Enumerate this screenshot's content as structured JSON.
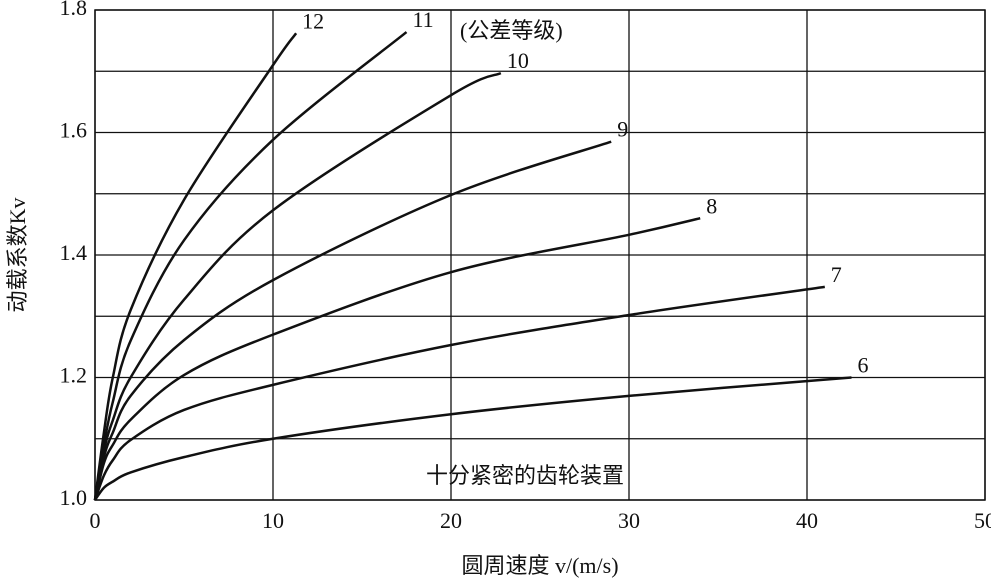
{
  "chart_data": {
    "type": "line",
    "xlabel": "圆周速度 v/(m/s)",
    "ylabel": "动载系数Kv",
    "annotations": [
      "(公差等级)",
      "十分紧密的齿轮装置"
    ],
    "xlim": [
      0,
      50
    ],
    "xticks": [
      0,
      10,
      20,
      30,
      40,
      50
    ],
    "ylim": [
      1.0,
      1.8
    ],
    "yticks": [
      {
        "value": 1.0,
        "label": "1.0"
      },
      {
        "value": 1.2,
        "label": "1.2"
      },
      {
        "value": 1.4,
        "label": "1.4"
      },
      {
        "value": 1.6,
        "label": "1.6"
      },
      {
        "value": 1.8,
        "label": "1.8"
      }
    ],
    "ygrid": [
      1.1,
      1.3,
      1.5,
      1.7
    ],
    "grid": true,
    "series": [
      {
        "name": "12",
        "color": "#111111",
        "x": [
          0,
          0.5,
          1,
          2,
          5,
          10,
          11.3
        ],
        "values": [
          1.0,
          1.11,
          1.2,
          1.31,
          1.49,
          1.71,
          1.762
        ]
      },
      {
        "name": "11",
        "color": "#111111",
        "x": [
          0,
          0.5,
          1,
          2,
          5,
          10,
          17.5
        ],
        "values": [
          1.0,
          1.09,
          1.16,
          1.26,
          1.424,
          1.588,
          1.764
        ]
      },
      {
        "name": "10",
        "color": "#111111",
        "x": [
          0,
          0.5,
          1,
          2,
          5,
          10,
          20,
          22.8
        ],
        "values": [
          1.0,
          1.08,
          1.13,
          1.2,
          1.327,
          1.473,
          1.661,
          1.697
        ]
      },
      {
        "name": "9",
        "color": "#111111",
        "x": [
          0,
          0.5,
          1,
          2,
          5,
          10,
          20,
          29
        ],
        "values": [
          1.0,
          1.07,
          1.11,
          1.17,
          1.261,
          1.359,
          1.498,
          1.585
        ]
      },
      {
        "name": "8",
        "color": "#111111",
        "x": [
          0,
          0.5,
          1,
          2,
          5,
          10,
          20,
          30,
          34
        ],
        "values": [
          1.0,
          1.06,
          1.09,
          1.131,
          1.204,
          1.27,
          1.372,
          1.433,
          1.46
        ]
      },
      {
        "name": "7",
        "color": "#111111",
        "x": [
          0,
          0.5,
          1,
          2,
          5,
          10,
          20,
          30,
          41
        ],
        "values": [
          1.0,
          1.04,
          1.065,
          1.098,
          1.147,
          1.188,
          1.253,
          1.302,
          1.348
        ]
      },
      {
        "name": "6",
        "color": "#111111",
        "x": [
          0,
          0.5,
          1,
          2,
          5,
          10,
          20,
          30,
          42.5
        ],
        "values": [
          1.0,
          1.02,
          1.03,
          1.045,
          1.07,
          1.1,
          1.14,
          1.17,
          1.2
        ]
      }
    ]
  }
}
